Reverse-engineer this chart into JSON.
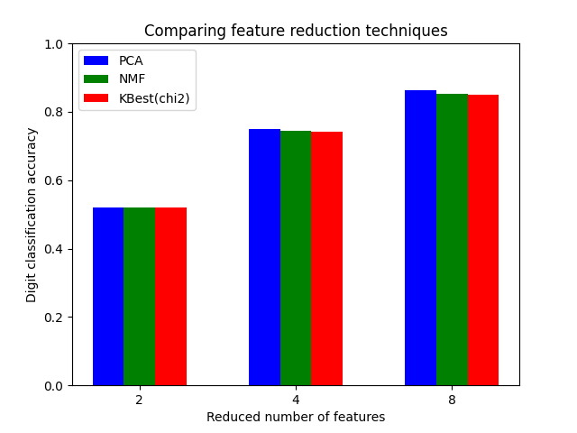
{
  "title": "Comparing feature reduction techniques",
  "xlabel": "Reduced number of features",
  "ylabel": "Digit classification accuracy",
  "categories": [
    2,
    4,
    8
  ],
  "series": {
    "PCA": [
      0.521,
      0.75,
      0.862
    ],
    "NMF": [
      0.521,
      0.744,
      0.853
    ],
    "KBest(chi2)": [
      0.521,
      0.742,
      0.851
    ]
  },
  "colors": {
    "PCA": "blue",
    "NMF": "green",
    "KBest(chi2)": "red"
  },
  "ylim": [
    0.0,
    1.0
  ],
  "yticks": [
    0.0,
    0.2,
    0.4,
    0.6,
    0.8,
    1.0
  ],
  "bar_width": 0.2,
  "figsize": [
    6.4,
    4.8
  ],
  "dpi": 100
}
